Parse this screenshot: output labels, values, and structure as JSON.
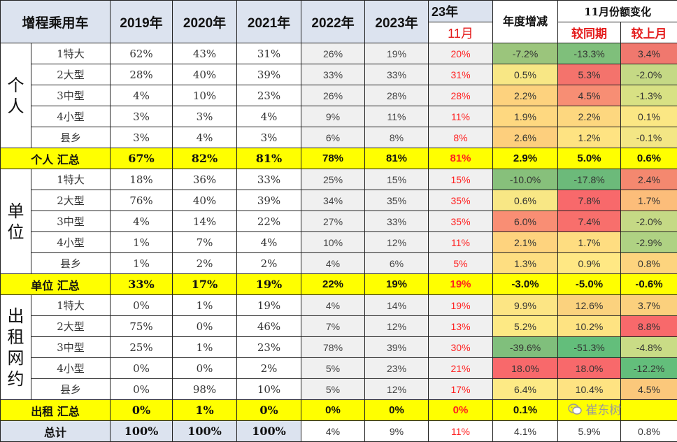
{
  "header": {
    "corner": "增程乘用车",
    "years": [
      "2019年",
      "2020年",
      "2021年",
      "2022年",
      "2023年"
    ],
    "col23_top": "23年",
    "col23_sub": "11月",
    "annual_change": "年度增减",
    "nov_share_change": "11月份额变化",
    "yoy": "较同期",
    "mom": "较上月"
  },
  "groups": [
    {
      "label": "个人",
      "label_chars": [
        "个",
        "人"
      ],
      "rows": [
        {
          "cat": "1特大",
          "v": [
            "62%",
            "43%",
            "31%",
            "26%",
            "19%",
            "20%"
          ],
          "d": [
            "-7.2%",
            "-13.3%",
            "3.4%"
          ],
          "c": [
            "#9bc57c",
            "#7fbf7b",
            "#f0786e"
          ]
        },
        {
          "cat": "2大型",
          "v": [
            "28%",
            "40%",
            "39%",
            "33%",
            "33%",
            "31%"
          ],
          "d": [
            "0.5%",
            "5.3%",
            "-2.0%"
          ],
          "c": [
            "#f8e785",
            "#f4736c",
            "#c5d985"
          ]
        },
        {
          "cat": "3中型",
          "v": [
            "4%",
            "10%",
            "23%",
            "26%",
            "28%",
            "28%"
          ],
          "d": [
            "2.2%",
            "4.5%",
            "-1.3%"
          ],
          "c": [
            "#fdd27e",
            "#f78e74",
            "#d8e184"
          ]
        },
        {
          "cat": "4小型",
          "v": [
            "3%",
            "3%",
            "4%",
            "9%",
            "11%",
            "11%"
          ],
          "d": [
            "1.9%",
            "2.2%",
            "0.1%"
          ],
          "c": [
            "#fed880",
            "#fdd77f",
            "#fbe784"
          ]
        },
        {
          "cat": "县乡",
          "v": [
            "3%",
            "4%",
            "3%",
            "6%",
            "8%",
            "8%"
          ],
          "d": [
            "2.6%",
            "1.2%",
            "-0.1%"
          ],
          "c": [
            "#fdcf7d",
            "#fee382",
            "#f3e685"
          ]
        }
      ],
      "subtotal": {
        "label": "个人 汇总",
        "v": [
          "67%",
          "82%",
          "81%",
          "78%",
          "81%",
          "81%"
        ],
        "d": [
          "2.9%",
          "5.0%",
          "0.6%"
        ]
      }
    },
    {
      "label": "单位",
      "label_chars": [
        "单",
        "位"
      ],
      "rows": [
        {
          "cat": "1特大",
          "v": [
            "18%",
            "36%",
            "33%",
            "25%",
            "15%",
            "15%"
          ],
          "d": [
            "-10.0%",
            "-17.8%",
            "2.4%"
          ],
          "c": [
            "#87c07b",
            "#6cba7a",
            "#f4886f"
          ]
        },
        {
          "cat": "2大型",
          "v": [
            "76%",
            "40%",
            "39%",
            "34%",
            "35%",
            "35%"
          ],
          "d": [
            "0.6%",
            "7.8%",
            "1.7%"
          ],
          "c": [
            "#f8e785",
            "#f8696b",
            "#fcbd7a"
          ]
        },
        {
          "cat": "3中型",
          "v": [
            "4%",
            "14%",
            "22%",
            "27%",
            "33%",
            "35%"
          ],
          "d": [
            "6.0%",
            "7.4%",
            "-2.0%"
          ],
          "c": [
            "#f98e74",
            "#f86f6c",
            "#c5d985"
          ]
        },
        {
          "cat": "4小型",
          "v": [
            "1%",
            "7%",
            "4%",
            "10%",
            "12%",
            "11%"
          ],
          "d": [
            "2.1%",
            "1.7%",
            "-2.9%"
          ],
          "c": [
            "#fed37e",
            "#fedd81",
            "#afd283"
          ]
        },
        {
          "cat": "县乡",
          "v": [
            "1%",
            "2%",
            "2%",
            "4%",
            "6%",
            "5%"
          ],
          "d": [
            "1.3%",
            "0.9%",
            "0.8%"
          ],
          "c": [
            "#fede81",
            "#ffe884",
            "#fdd47e"
          ]
        }
      ],
      "subtotal": {
        "label": "单位 汇总",
        "v": [
          "33%",
          "17%",
          "19%",
          "22%",
          "19%",
          "19%"
        ],
        "d": [
          "-3.0%",
          "-5.0%",
          "-0.6%"
        ]
      }
    },
    {
      "label": "出租网约",
      "label_chars": [
        "出",
        "租",
        "网",
        "约"
      ],
      "rows": [
        {
          "cat": "1特大",
          "v": [
            "0%",
            "1%",
            "19%",
            "4%",
            "14%",
            "19%"
          ],
          "d": [
            "9.9%",
            "12.6%",
            "3.7%"
          ],
          "c": [
            "#fce584",
            "#fbd27e",
            "#fbd07d"
          ]
        },
        {
          "cat": "2大型",
          "v": [
            "75%",
            "0%",
            "46%",
            "7%",
            "12%",
            "13%"
          ],
          "d": [
            "5.2%",
            "10.2%",
            "8.8%"
          ],
          "c": [
            "#fde984",
            "#fee382",
            "#f8696b"
          ]
        },
        {
          "cat": "3中型",
          "v": [
            "25%",
            "1%",
            "23%",
            "78%",
            "39%",
            "30%"
          ],
          "d": [
            "-39.6%",
            "-51.3%",
            "-4.8%"
          ],
          "c": [
            "#80bf7c",
            "#63be7b",
            "#c9dc86"
          ]
        },
        {
          "cat": "4小型",
          "v": [
            "0%",
            "0%",
            "2%",
            "5%",
            "23%",
            "21%"
          ],
          "d": [
            "18.0%",
            "18.0%",
            "-12.2%"
          ],
          "c": [
            "#f8696b",
            "#f8696b",
            "#63be7b"
          ]
        },
        {
          "cat": "县乡",
          "v": [
            "0%",
            "98%",
            "10%",
            "5%",
            "12%",
            "17%"
          ],
          "d": [
            "6.4%",
            "10.4%",
            "4.5%"
          ],
          "c": [
            "#fdea85",
            "#fee382",
            "#fbc87b"
          ]
        }
      ],
      "subtotal": {
        "label": "出租 汇总",
        "v": [
          "0%",
          "1%",
          "0%",
          "0%",
          "0%",
          "0%"
        ],
        "d": [
          "0.1%",
          "",
          ""
        ]
      }
    }
  ],
  "total": {
    "label": "总计",
    "v": [
      "100%",
      "100%",
      "100%",
      "4%",
      "9%",
      "11%"
    ],
    "d": [
      "4.1%",
      "5.9%",
      "0.8%"
    ]
  },
  "watermark": "崔东树"
}
